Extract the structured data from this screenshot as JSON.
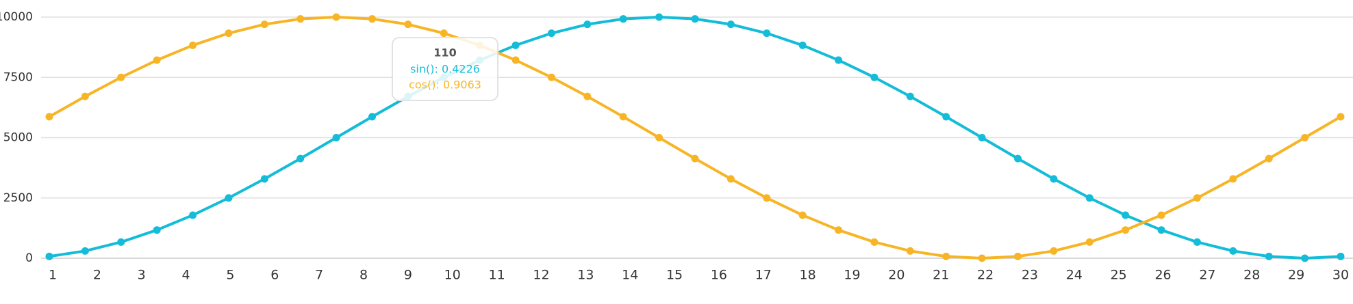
{
  "chart_data": {
    "type": "line",
    "series": [
      {
        "color": "#13bcd8",
        "values": [
          76,
          302,
          670,
          1170,
          1786,
          2500,
          3290,
          4132,
          5000,
          5868,
          6710,
          7500,
          8214,
          8830,
          9330,
          9698,
          9924,
          10000,
          9924,
          9698,
          9330,
          8830,
          8214,
          7500,
          6710,
          5868,
          5000,
          4132,
          3290,
          2500,
          1786,
          1170,
          670,
          302,
          76,
          0,
          76
        ]
      },
      {
        "color": "#f7b526",
        "values": [
          5868,
          6710,
          7500,
          8214,
          8830,
          9330,
          9698,
          9924,
          10000,
          9924,
          9698,
          9330,
          8830,
          8214,
          7500,
          6710,
          5868,
          5000,
          4132,
          3290,
          2500,
          1786,
          1170,
          670,
          302,
          76,
          0,
          76,
          302,
          670,
          1170,
          1786,
          2500,
          3290,
          4132,
          5000,
          5868
        ]
      }
    ],
    "xlim": [
      1,
      30
    ],
    "xticks": [
      1,
      2,
      3,
      4,
      5,
      6,
      7,
      8,
      9,
      10,
      11,
      12,
      13,
      14,
      15,
      16,
      17,
      18,
      19,
      20,
      21,
      22,
      23,
      24,
      25,
      26,
      27,
      28,
      29,
      30
    ],
    "ylim": [
      0,
      10000
    ],
    "yticks": [
      0,
      2500,
      5000,
      7500,
      10000
    ],
    "grid": true,
    "tooltip": {
      "title": "110",
      "lines": [
        "sin(): 0.4226",
        "cos(): 0.9063"
      ]
    }
  }
}
